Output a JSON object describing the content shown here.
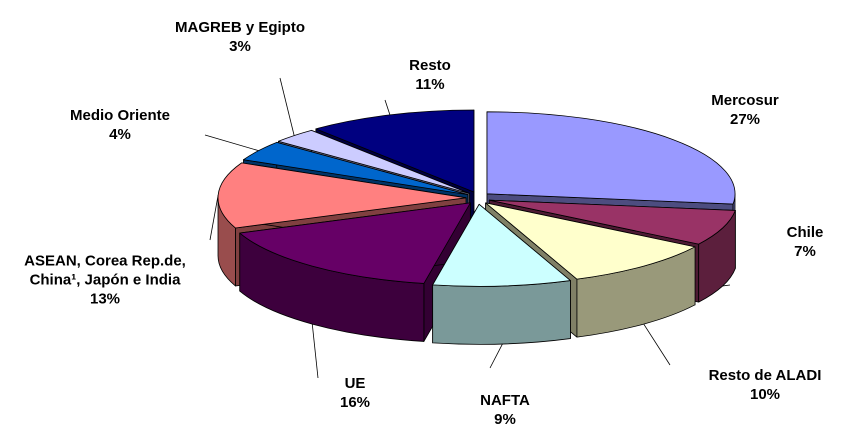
{
  "chart_data": {
    "type": "pie3d",
    "categories": [
      "Mercosur",
      "Chile",
      "Resto de ALADI",
      "NAFTA",
      "UE",
      "ASEAN, Corea Rep.de, China¹, Japón e India",
      "Medio Oriente",
      "MAGREB y Egipto",
      "Resto"
    ],
    "values": [
      27,
      7,
      10,
      9,
      16,
      13,
      4,
      3,
      11
    ],
    "value_labels": [
      "27%",
      "7%",
      "10%",
      "9%",
      "16%",
      "13%",
      "4%",
      "3%",
      "11%"
    ],
    "colors": [
      "#9999ff",
      "#993366",
      "#ffffcc",
      "#ccffff",
      "#660066",
      "#ff8080",
      "#0066cc",
      "#ccccff",
      "#000080"
    ]
  }
}
